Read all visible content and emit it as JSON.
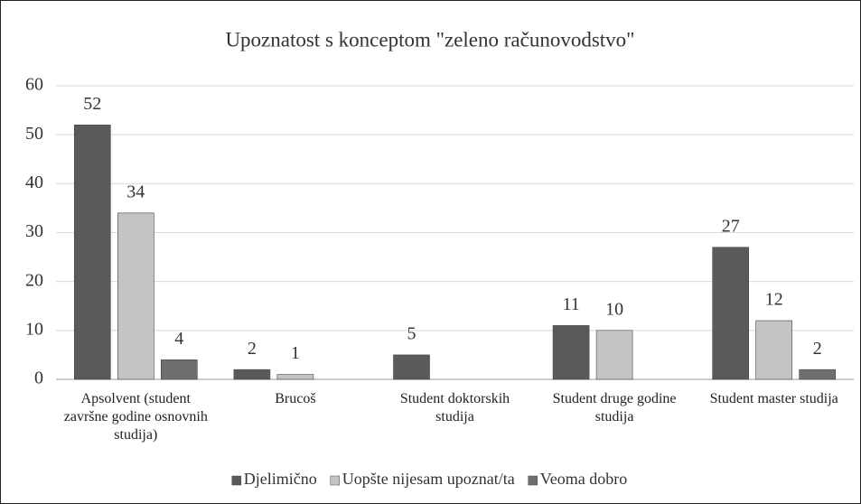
{
  "chart_data": {
    "type": "bar",
    "title": "Upoznatost s konceptom \"zeleno računovodstvo\"",
    "categories": [
      "Apsolvent (student završne godine osnovnih studija)",
      "Brucoš",
      "Student doktorskih studija",
      "Student druge godine studija",
      "Student master studija"
    ],
    "series": [
      {
        "name": "Djelimično",
        "color": "#5a5a5a",
        "values": [
          52,
          2,
          5,
          11,
          27
        ]
      },
      {
        "name": "Uopšte nijesam upoznat/ta",
        "color": "#c4c4c4",
        "values": [
          34,
          1,
          null,
          10,
          12
        ]
      },
      {
        "name": "Veoma dobro",
        "color": "#6e6e6e",
        "values": [
          4,
          null,
          null,
          null,
          2
        ]
      }
    ],
    "ylim": [
      0,
      60
    ],
    "yticks": [
      0,
      10,
      20,
      30,
      40,
      50,
      60
    ],
    "grid": true,
    "legend": "bottom"
  }
}
